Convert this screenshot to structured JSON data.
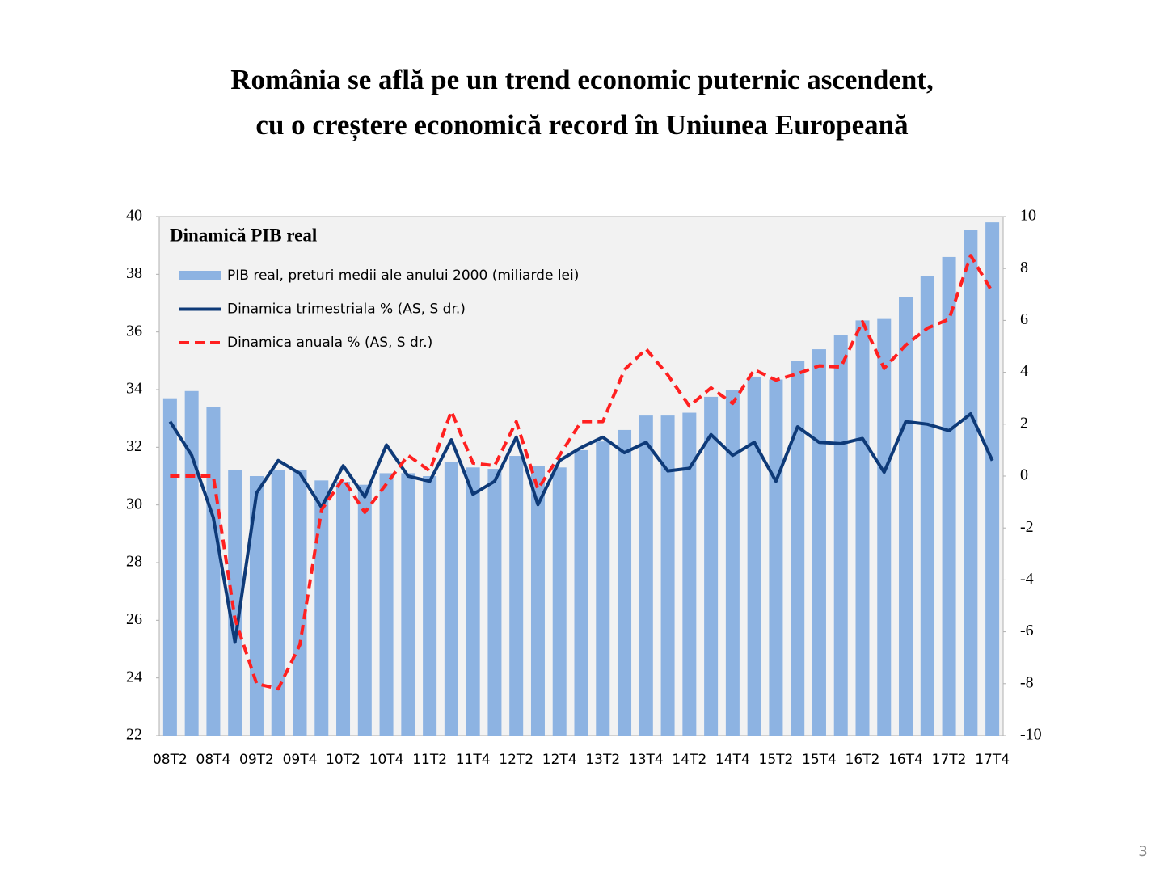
{
  "title": [
    "România se află pe un trend economic puternic ascendent,",
    "cu o creștere economică record în Uniunea Europeană"
  ],
  "page_number": "3",
  "chart_data": {
    "type": "combo",
    "title": "Dinamică PIB real",
    "categories": [
      "08T2",
      null,
      "08T4",
      null,
      "09T2",
      null,
      "09T4",
      null,
      "10T2",
      null,
      "10T4",
      null,
      "11T2",
      null,
      "11T4",
      null,
      "12T2",
      null,
      "12T4",
      null,
      "13T2",
      null,
      "13T4",
      null,
      "14T2",
      null,
      "14T4",
      null,
      "15T2",
      null,
      "15T4",
      null,
      "16T2",
      null,
      "16T4",
      null,
      "17T2",
      null,
      "17T4"
    ],
    "series": [
      {
        "name": "PIB real, preturi medii ale anului 2000 (miliarde lei)",
        "type": "bar",
        "color": "#8db3e2",
        "values": [
          33.7,
          33.95,
          33.4,
          31.2,
          31.0,
          31.2,
          31.2,
          30.85,
          30.8,
          30.7,
          31.1,
          31.1,
          31.0,
          31.5,
          31.3,
          31.25,
          31.7,
          31.35,
          31.3,
          31.9,
          32.2,
          32.6,
          33.1,
          33.1,
          33.2,
          33.75,
          34.0,
          34.45,
          34.35,
          35.0,
          35.4,
          35.9,
          36.4,
          36.45,
          37.2,
          37.95,
          38.6,
          39.55,
          39.8
        ]
      },
      {
        "name": "Dinamica trimestriala % (AS, S dr.)",
        "type": "line",
        "axis": "y2",
        "color": "#0e3a78",
        "dashed": false,
        "values": [
          2.1,
          0.8,
          -1.6,
          -6.4,
          -0.65,
          0.6,
          0.1,
          -1.2,
          0.4,
          -0.8,
          1.2,
          0.0,
          -0.2,
          1.4,
          -0.7,
          -0.2,
          1.5,
          -1.1,
          0.6,
          1.1,
          1.5,
          0.9,
          1.3,
          0.2,
          0.3,
          1.6,
          0.8,
          1.3,
          -0.2,
          1.9,
          1.3,
          1.25,
          1.45,
          0.15,
          2.1,
          2.0,
          1.75,
          2.4,
          0.6
        ]
      },
      {
        "name": "Dinamica anuala % (AS, S dr.)",
        "type": "line",
        "axis": "y2",
        "color": "#ff2020",
        "dashed": true,
        "values": [
          0,
          0,
          0,
          -5.5,
          -8.0,
          -8.2,
          -6.5,
          -1.3,
          -0.1,
          -1.4,
          -0.3,
          0.8,
          0.2,
          2.5,
          0.5,
          0.4,
          2.1,
          -0.5,
          0.8,
          2.1,
          2.1,
          4.1,
          4.9,
          3.9,
          2.7,
          3.4,
          2.8,
          4.1,
          3.7,
          3.95,
          4.25,
          4.2,
          5.95,
          4.15,
          5.05,
          5.7,
          6.05,
          8.5,
          7.1
        ]
      }
    ],
    "ylim": [
      22,
      40
    ],
    "yticks": [
      22,
      24,
      26,
      28,
      30,
      32,
      34,
      36,
      38,
      40
    ],
    "y2lim": [
      -10,
      10
    ],
    "y2ticks": [
      -10,
      -8,
      -6,
      -4,
      -2,
      0,
      2,
      4,
      6,
      8,
      10
    ],
    "legend": "upper left"
  }
}
